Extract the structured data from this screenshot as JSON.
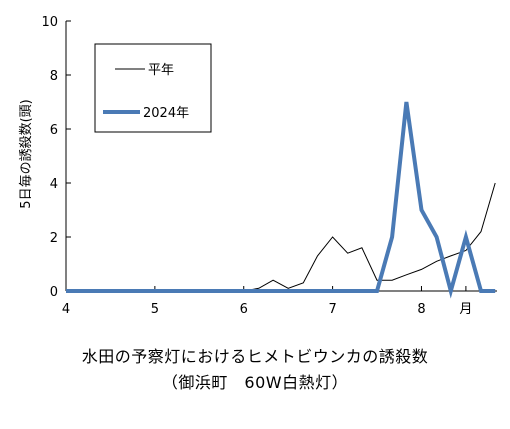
{
  "chart_data": {
    "type": "line",
    "ylabel": "5日毎の誘殺数(頭)",
    "ylim": [
      0,
      10
    ],
    "yticks": [
      0,
      2,
      4,
      6,
      8,
      10
    ],
    "xlim": [
      4,
      8.85
    ],
    "xticks": [
      {
        "value": 4,
        "label": "4"
      },
      {
        "value": 5,
        "label": "5"
      },
      {
        "value": 6,
        "label": "6"
      },
      {
        "value": 7,
        "label": "7"
      },
      {
        "value": 8,
        "label": "8"
      },
      {
        "value": 8.5,
        "label": "月"
      }
    ],
    "legend_position": "top-left",
    "series": [
      {
        "name": "平年",
        "color": "#000000",
        "width": 1,
        "x": [
          4.0,
          4.17,
          4.33,
          4.5,
          4.67,
          4.83,
          5.0,
          5.17,
          5.33,
          5.5,
          5.67,
          5.83,
          6.0,
          6.17,
          6.33,
          6.5,
          6.67,
          6.83,
          7.0,
          7.17,
          7.33,
          7.5,
          7.67,
          7.83,
          8.0,
          8.17,
          8.33,
          8.5,
          8.67,
          8.83
        ],
        "y": [
          0,
          0,
          0,
          0,
          0,
          0,
          0,
          0,
          0,
          0,
          0,
          0,
          0,
          0.1,
          0.4,
          0.1,
          0.3,
          1.3,
          2.0,
          1.4,
          1.6,
          0.4,
          0.4,
          0.6,
          0.8,
          1.1,
          1.3,
          1.5,
          2.2,
          4.0
        ]
      },
      {
        "name": "2024年",
        "color": "#4a7ab5",
        "width": 4,
        "x": [
          4.0,
          4.17,
          4.33,
          4.5,
          4.67,
          4.83,
          5.0,
          5.17,
          5.33,
          5.5,
          5.67,
          5.83,
          6.0,
          6.17,
          6.33,
          6.5,
          6.67,
          6.83,
          7.0,
          7.17,
          7.33,
          7.5,
          7.67,
          7.83,
          8.0,
          8.17,
          8.33,
          8.5,
          8.67,
          8.83
        ],
        "y": [
          0,
          0,
          0,
          0,
          0,
          0,
          0,
          0,
          0,
          0,
          0,
          0,
          0,
          0,
          0,
          0,
          0,
          0,
          0,
          0,
          0,
          0,
          2,
          7,
          3,
          2,
          0,
          2,
          0,
          0
        ]
      }
    ]
  },
  "caption": {
    "line1": "水田の予察灯におけるヒメトビウンカの誘殺数",
    "line2": "（御浜町　60W白熱灯）"
  }
}
